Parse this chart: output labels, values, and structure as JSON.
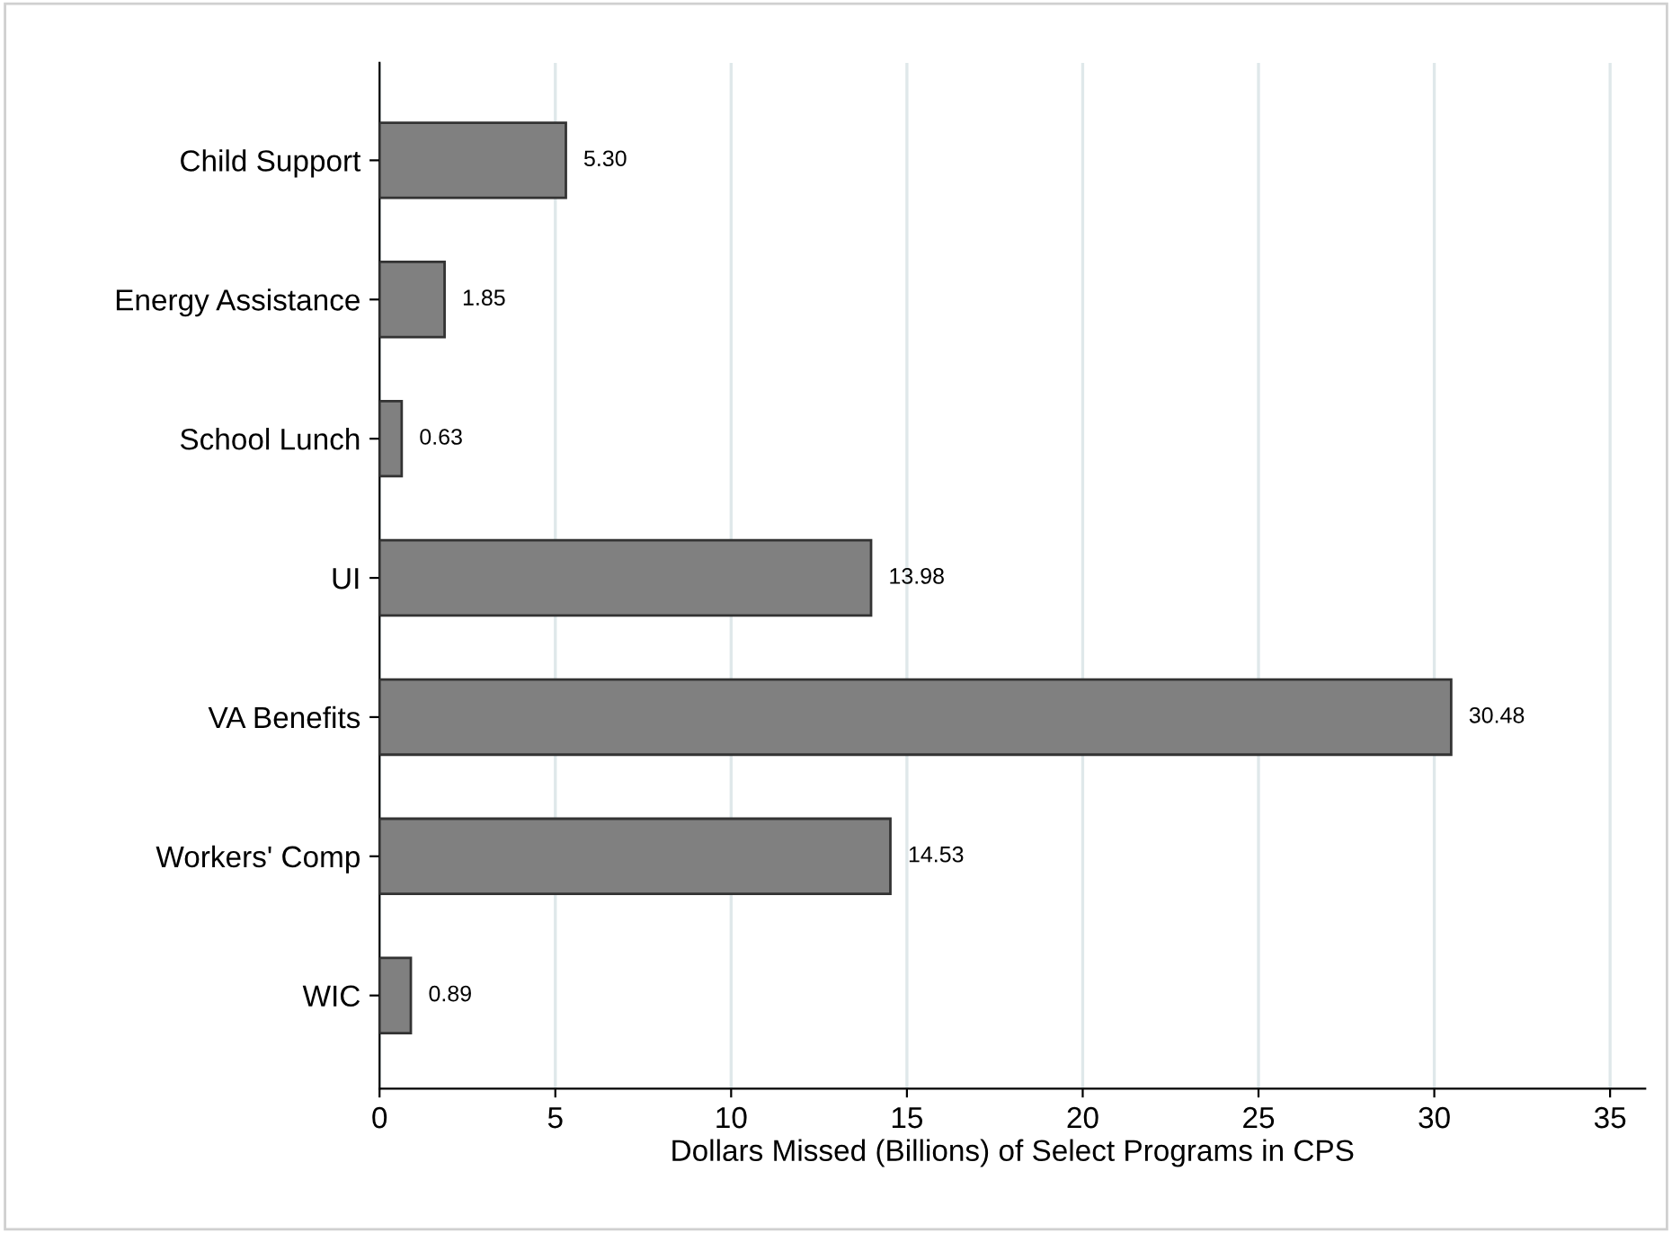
{
  "chart_data": {
    "type": "bar",
    "orientation": "horizontal",
    "xlabel": "Dollars Missed (Billions) of Select Programs in CPS",
    "categories": [
      "Child Support",
      "Energy Assistance",
      "School Lunch",
      "UI",
      "VA Benefits",
      "Workers' Comp",
      "WIC"
    ],
    "values": [
      5.3,
      1.85,
      0.63,
      13.98,
      30.48,
      14.53,
      0.89
    ],
    "value_labels": [
      "5.30",
      "1.85",
      "0.63",
      "13.98",
      "30.48",
      "14.53",
      "0.89"
    ],
    "color": "#808080",
    "xlim": [
      0,
      36
    ],
    "xticks": [
      0,
      5,
      10,
      15,
      20,
      25,
      30,
      35
    ],
    "grid": "x"
  }
}
